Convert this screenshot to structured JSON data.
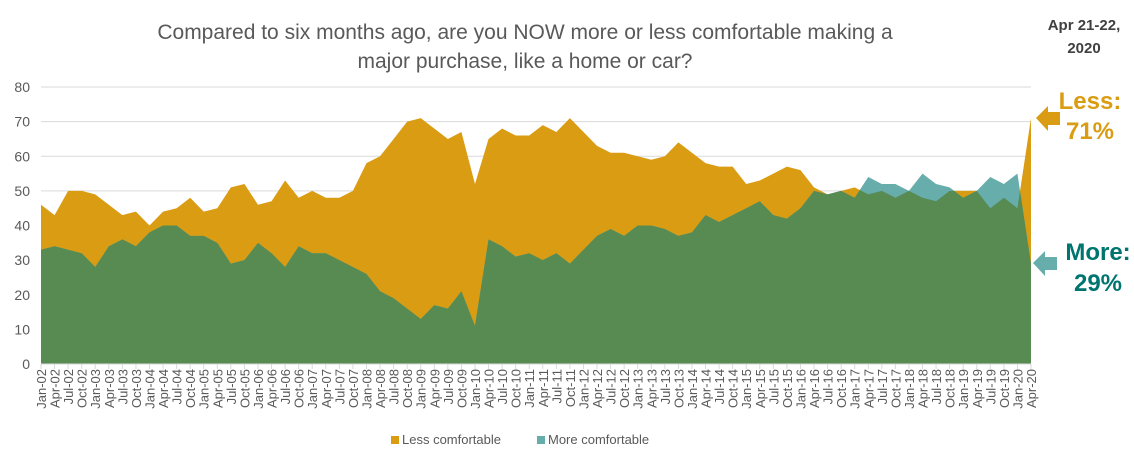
{
  "chart_data": {
    "type": "area",
    "title": "Compared to six months ago, are you NOW more or less comfortable making a major purchase, like a home or car?",
    "title_lines": [
      "Compared to six months ago, are you NOW more or less comfortable making a",
      "major purchase, like a home or car?"
    ],
    "date_note_lines": [
      "Apr 21-22,",
      "2020"
    ],
    "xlabel": "",
    "ylabel": "",
    "ylim": [
      0,
      80
    ],
    "yticks": [
      0,
      10,
      20,
      30,
      40,
      50,
      60,
      70,
      80
    ],
    "grid": true,
    "legend_position": "bottom",
    "categories": [
      "Jan-02",
      "Apr-02",
      "Jul-02",
      "Oct-02",
      "Jan-03",
      "Apr-03",
      "Jul-03",
      "Oct-03",
      "Jan-04",
      "Apr-04",
      "Jul-04",
      "Oct-04",
      "Jan-05",
      "Apr-05",
      "Jul-05",
      "Oct-05",
      "Jan-06",
      "Apr-06",
      "Jul-06",
      "Oct-06",
      "Jan-07",
      "Apr-07",
      "Jul-07",
      "Oct-07",
      "Jan-08",
      "Apr-08",
      "Jul-08",
      "Oct-08",
      "Jan-09",
      "Apr-09",
      "Jul-09",
      "Oct-09",
      "Jan-10",
      "Apr-10",
      "Jul-10",
      "Oct-10",
      "Jan-11",
      "Apr-11",
      "Jul-11",
      "Oct-11",
      "Jan-12",
      "Apr-12",
      "Jul-12",
      "Oct-12",
      "Jan-13",
      "Apr-13",
      "Jul-13",
      "Oct-13",
      "Jan-14",
      "Apr-14",
      "Jul-14",
      "Oct-14",
      "Jan-15",
      "Apr-15",
      "Jul-15",
      "Oct-15",
      "Jan-16",
      "Apr-16",
      "Jul-16",
      "Oct-16",
      "Jan-17",
      "Apr-17",
      "Jul-17",
      "Oct-17",
      "Jan-18",
      "Apr-18",
      "Jul-18",
      "Oct-18",
      "Jan-19",
      "Apr-19",
      "Jul-19",
      "Oct-19",
      "Jan-20",
      "Apr-20"
    ],
    "series": [
      {
        "name": "Less comfortable",
        "color": "#DA9C12",
        "values": [
          46,
          43,
          50,
          50,
          49,
          46,
          43,
          44,
          40,
          44,
          45,
          48,
          44,
          45,
          51,
          52,
          46,
          47,
          53,
          48,
          50,
          48,
          48,
          50,
          58,
          60,
          65,
          70,
          71,
          68,
          65,
          67,
          52,
          65,
          68,
          66,
          66,
          69,
          67,
          71,
          67,
          63,
          61,
          61,
          60,
          59,
          60,
          64,
          61,
          58,
          57,
          57,
          52,
          53,
          55,
          57,
          56,
          51,
          49,
          50,
          51,
          49,
          50,
          48,
          50,
          48,
          47,
          50,
          50,
          50,
          45,
          48,
          45,
          71
        ]
      },
      {
        "name": "More comfortable",
        "color": "#66ADAC",
        "values": [
          33,
          34,
          33,
          32,
          28,
          34,
          36,
          34,
          38,
          40,
          40,
          37,
          37,
          35,
          29,
          30,
          35,
          32,
          28,
          34,
          32,
          32,
          30,
          28,
          26,
          21,
          19,
          16,
          13,
          17,
          16,
          21,
          11,
          36,
          34,
          31,
          32,
          30,
          32,
          29,
          33,
          37,
          39,
          37,
          40,
          40,
          39,
          37,
          38,
          43,
          41,
          43,
          45,
          47,
          43,
          42,
          45,
          50,
          49,
          50,
          48,
          54,
          52,
          52,
          50,
          55,
          52,
          51,
          48,
          50,
          54,
          52,
          55,
          29
        ]
      }
    ],
    "overlap_color": "#578B52",
    "callouts": {
      "less": {
        "label": "Less:",
        "value": "71%",
        "color": "#DA9C12"
      },
      "more": {
        "label": "More:",
        "value": "29%",
        "color": "#00756F",
        "arrow_color": "#66ADAC"
      }
    }
  }
}
